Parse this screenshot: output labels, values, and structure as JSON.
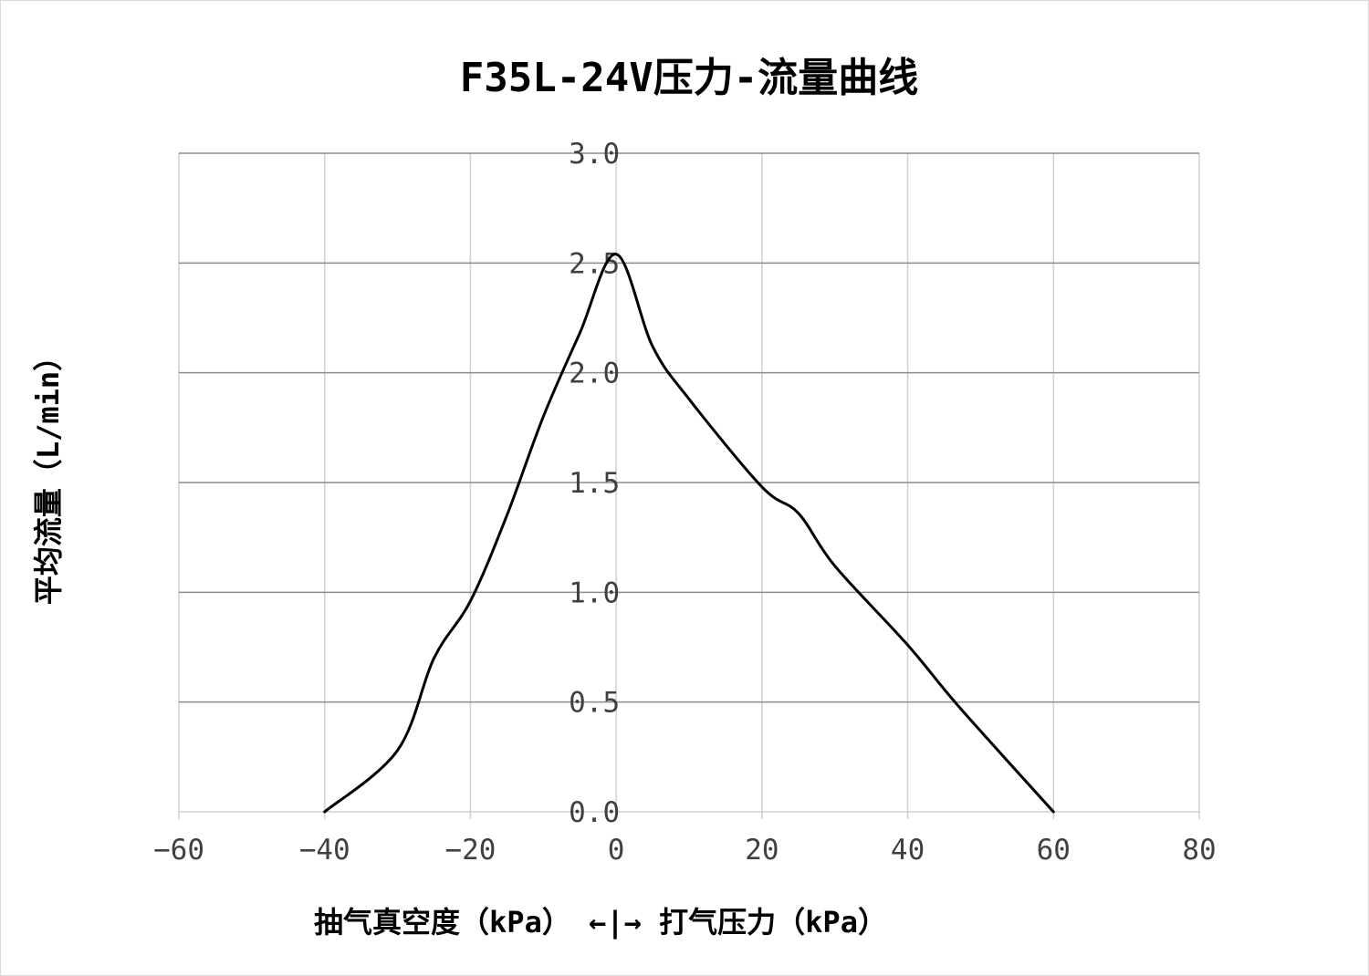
{
  "chart_data": {
    "type": "line",
    "title": "F35L-24V压力-流量曲线",
    "ylabel": "平均流量（L/min）",
    "xlabel": "抽气真空度（kPa） ←|→ 打气压力（kPa）",
    "xlim": [
      -60,
      80
    ],
    "ylim": [
      0,
      3
    ],
    "xticks": [
      "−60",
      "−40",
      "−20",
      "0",
      "20",
      "40",
      "60",
      "80"
    ],
    "xtick_values": [
      -60,
      -40,
      -20,
      0,
      20,
      40,
      60,
      80
    ],
    "yticks": [
      "0.0",
      "0.5",
      "1.0",
      "1.5",
      "2.0",
      "2.5",
      "3.0"
    ],
    "ytick_values": [
      0,
      0.5,
      1.0,
      1.5,
      2.0,
      2.5,
      3.0
    ],
    "grid": true,
    "legend": "none",
    "series": [
      {
        "color": "#000000",
        "x": [
          -40,
          -30,
          -25,
          -20,
          -15,
          -10,
          -5,
          0,
          5,
          10,
          20,
          25,
          30,
          40,
          47,
          60
        ],
        "y": [
          0.0,
          0.28,
          0.7,
          0.96,
          1.35,
          1.8,
          2.18,
          2.54,
          2.12,
          1.88,
          1.48,
          1.36,
          1.12,
          0.76,
          0.48,
          0.0
        ]
      }
    ]
  }
}
